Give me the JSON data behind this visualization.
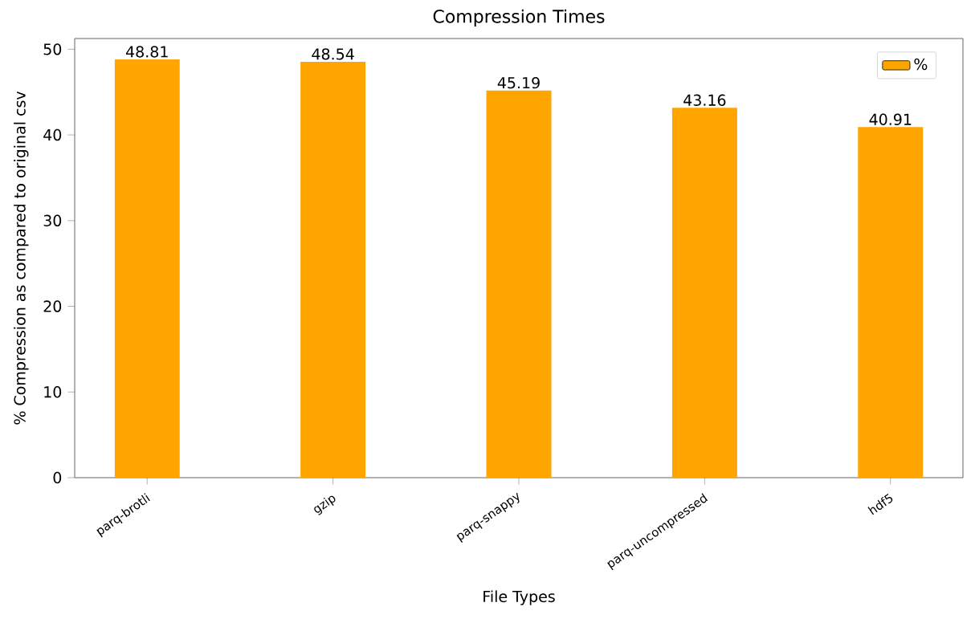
{
  "chart_data": {
    "type": "bar",
    "title": "Compression Times",
    "xlabel": "File Types",
    "ylabel": "% Compression as compared to original csv",
    "categories": [
      "parq-brotli",
      "gzip",
      "parq-snappy",
      "parq-uncompressed",
      "hdf5"
    ],
    "series": [
      {
        "name": "%",
        "color": "#ffa500",
        "values": [
          48.81,
          48.54,
          45.19,
          43.16,
          40.91
        ]
      }
    ],
    "ylim": [
      0,
      51.25
    ],
    "yticks": [
      0,
      10,
      20,
      30,
      40,
      50
    ],
    "data_labels": true,
    "legend": "top right",
    "grid": false
  }
}
